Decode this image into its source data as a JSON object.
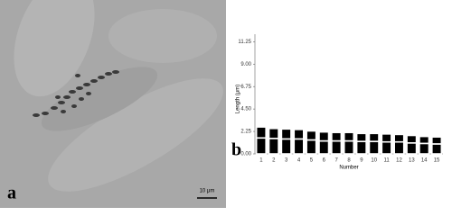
{
  "panel_a": {
    "label": "a",
    "scale_bar": "10 μm"
  },
  "chart_data": {
    "type": "stacked-bar",
    "panel_label": "b",
    "x_label": "Number",
    "y_label": "Length (μm)",
    "categories": [
      "1",
      "2",
      "3",
      "4",
      "5",
      "6",
      "7",
      "8",
      "9",
      "10",
      "11",
      "12",
      "13",
      "14",
      "15"
    ],
    "series": [
      {
        "color": "#000000",
        "values": [
          1.6,
          1.55,
          1.5,
          1.5,
          1.4,
          1.3,
          1.3,
          1.3,
          1.25,
          1.25,
          1.2,
          1.2,
          1.1,
          1.05,
          1.0
        ]
      },
      {
        "color": "#000000",
        "values": [
          1.1,
          1.0,
          1.0,
          0.95,
          0.9,
          0.9,
          0.85,
          0.85,
          0.8,
          0.8,
          0.8,
          0.75,
          0.75,
          0.7,
          0.7
        ]
      }
    ],
    "ylim": [
      0,
      12
    ],
    "yticks": [
      {
        "value": 0,
        "label": "0.00"
      },
      {
        "value": 2.25,
        "label": "2.25"
      },
      {
        "value": 4.5,
        "label": "4.50"
      },
      {
        "value": 6.75,
        "label": "6.75"
      },
      {
        "value": 9,
        "label": "9.00"
      },
      {
        "value": 11.25,
        "label": "11.25"
      }
    ]
  }
}
